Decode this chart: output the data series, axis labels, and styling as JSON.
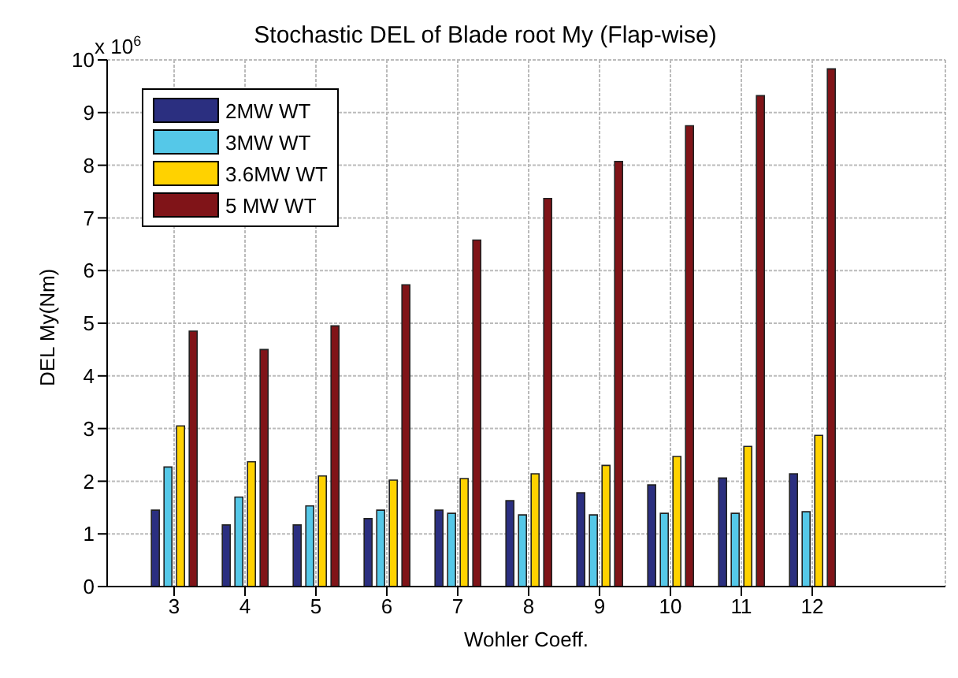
{
  "chart_data": {
    "type": "bar",
    "title": "Stochastic DEL of Blade root My (Flap-wise)",
    "xlabel": "Wohler Coeff.",
    "ylabel": "DEL My(Nm)",
    "annotations": [
      "x 10$^{6}$"
    ],
    "categories": [
      "3",
      "4",
      "5",
      "6",
      "7",
      "8",
      "9",
      "10",
      "11",
      "12"
    ],
    "series": [
      {
        "name": "2MW WT",
        "color": "#2b2f80",
        "values": [
          1.45,
          1.17,
          1.17,
          1.29,
          1.45,
          1.63,
          1.78,
          1.93,
          2.06,
          2.14
        ]
      },
      {
        "name": "3MW WT",
        "color": "#55c8e8",
        "values": [
          2.27,
          1.7,
          1.53,
          1.45,
          1.39,
          1.36,
          1.36,
          1.39,
          1.39,
          1.42
        ]
      },
      {
        "name": "3.6MW WT",
        "color": "#ffd200",
        "values": [
          3.05,
          2.37,
          2.1,
          2.02,
          2.05,
          2.14,
          2.3,
          2.47,
          2.66,
          2.87
        ]
      },
      {
        "name": "5 MW WT",
        "color": "#801418",
        "values": [
          4.85,
          4.5,
          4.95,
          5.73,
          6.58,
          7.37,
          8.07,
          8.75,
          9.32,
          9.83
        ]
      }
    ],
    "ylim": [
      0,
      10
    ],
    "yticks": [
      0,
      1,
      2,
      3,
      4,
      5,
      6,
      7,
      8,
      9,
      10
    ],
    "grid": true,
    "legend": "top left"
  }
}
